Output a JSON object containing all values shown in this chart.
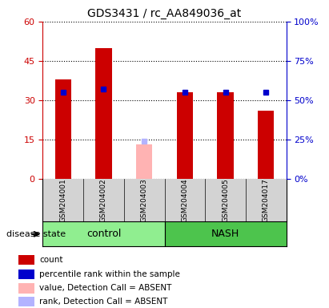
{
  "title": "GDS3431 / rc_AA849036_at",
  "samples": [
    "GSM204001",
    "GSM204002",
    "GSM204003",
    "GSM204004",
    "GSM204005",
    "GSM204017"
  ],
  "groups": [
    "control",
    "control",
    "control",
    "NASH",
    "NASH",
    "NASH"
  ],
  "count_values": [
    38,
    50,
    null,
    33,
    33,
    26
  ],
  "percentile_values": [
    55,
    57,
    null,
    55,
    55,
    55
  ],
  "absent_value_values": [
    null,
    null,
    13,
    null,
    null,
    null
  ],
  "absent_rank_values": [
    null,
    null,
    24,
    null,
    null,
    null
  ],
  "ylim_left": [
    0,
    60
  ],
  "ylim_right": [
    0,
    100
  ],
  "yticks_left": [
    0,
    15,
    30,
    45,
    60
  ],
  "yticks_right": [
    0,
    25,
    50,
    75,
    100
  ],
  "ytick_labels_left": [
    "0",
    "15",
    "30",
    "45",
    "60"
  ],
  "ytick_labels_right": [
    "0%",
    "25%",
    "50%",
    "75%",
    "100%"
  ],
  "color_count": "#cc0000",
  "color_percentile": "#0000cc",
  "color_absent_value": "#ffb3b3",
  "color_absent_rank": "#b3b3ff",
  "color_control_bg": "#90ee90",
  "color_nash_bg": "#00cc00",
  "color_sample_bg": "#d3d3d3",
  "bar_width": 0.4,
  "group_label": "disease state",
  "legend_items": [
    {
      "label": "count",
      "color": "#cc0000",
      "marker": "s"
    },
    {
      "label": "percentile rank within the sample",
      "color": "#0000cc",
      "marker": "s"
    },
    {
      "label": "value, Detection Call = ABSENT",
      "color": "#ffb3b3",
      "marker": "s"
    },
    {
      "label": "rank, Detection Call = ABSENT",
      "color": "#b3b3ff",
      "marker": "s"
    }
  ]
}
